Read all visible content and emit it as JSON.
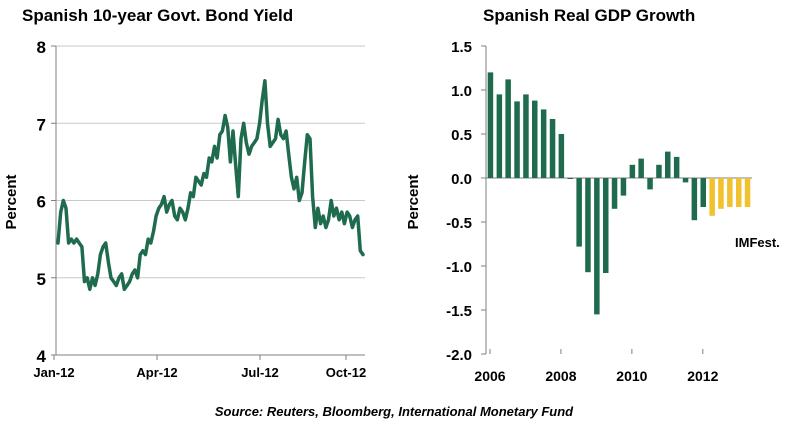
{
  "source": "Source: Reuters, Bloomberg, International Monetary Fund",
  "chart_data": [
    {
      "type": "line",
      "title": "Spanish 10-year Govt.  Bond Yield",
      "ylabel": "Percent",
      "xlabel": "",
      "ylim": [
        4,
        8
      ],
      "yticks": [
        "4",
        "5",
        "6",
        "7",
        "8"
      ],
      "xticks": [
        "Jan-12",
        "Apr-12",
        "Jul-12",
        "Oct-12"
      ],
      "grid": true,
      "color": "#1f6b4d",
      "series": [
        {
          "values": [
            5.45,
            5.85,
            6.0,
            5.9,
            5.45,
            5.5,
            5.45,
            5.5,
            5.45,
            5.4,
            4.95,
            5.0,
            4.85,
            5.0,
            4.9,
            5.05,
            5.3,
            5.4,
            5.45,
            5.2,
            5.0,
            4.95,
            4.9,
            5.0,
            5.05,
            4.85,
            4.9,
            4.95,
            5.05,
            5.1,
            5.0,
            5.3,
            5.35,
            5.3,
            5.5,
            5.45,
            5.6,
            5.8,
            5.9,
            5.95,
            6.05,
            5.85,
            5.95,
            6.0,
            5.8,
            5.75,
            5.9,
            5.85,
            5.75,
            5.9,
            6.1,
            6.05,
            6.3,
            6.25,
            6.2,
            6.35,
            6.3,
            6.55,
            6.5,
            6.7,
            6.55,
            6.85,
            6.9,
            7.1,
            6.95,
            6.5,
            6.9,
            6.45,
            6.05,
            6.8,
            7.0,
            6.75,
            6.6,
            6.7,
            6.75,
            6.8,
            7.0,
            7.3,
            7.55,
            7.0,
            6.7,
            6.75,
            6.8,
            7.05,
            6.85,
            6.8,
            6.9,
            6.6,
            6.3,
            6.15,
            6.3,
            6.0,
            6.1,
            6.5,
            6.85,
            6.8,
            6.05,
            5.65,
            5.9,
            5.7,
            5.8,
            5.65,
            5.75,
            6.0,
            5.8,
            5.9,
            5.75,
            5.85,
            5.7,
            5.85,
            5.8,
            5.65,
            5.75,
            5.8,
            5.35,
            5.3
          ]
        }
      ]
    },
    {
      "type": "bar",
      "title": "Spanish Real GDP Growth",
      "ylabel": "Percent",
      "xlabel": "",
      "ylim": [
        -2.0,
        1.5
      ],
      "yticks": [
        "1.5",
        "1.0",
        "0.5",
        "0.0",
        "-0.5",
        "-1.0",
        "-1.5",
        "-2.0"
      ],
      "xticks": [
        "2006",
        "2008",
        "2010",
        "2012"
      ],
      "grid": false,
      "annotation": "IMFest.",
      "colors": {
        "actual": "#1f6b4d",
        "estimate": "#f2c12e"
      },
      "series": [
        {
          "values": [
            1.2,
            0.95,
            1.12,
            0.87,
            0.95,
            0.88,
            0.78,
            0.67,
            0.5,
            0.0,
            -0.78,
            -1.07,
            -1.55,
            -1.08,
            -0.35,
            -0.2,
            0.15,
            0.22,
            -0.13,
            0.15,
            0.3,
            0.24,
            -0.05,
            -0.48,
            -0.33,
            -0.43,
            -0.35,
            -0.33,
            -0.33,
            -0.33
          ],
          "estimate_from_index": 25
        }
      ]
    }
  ]
}
